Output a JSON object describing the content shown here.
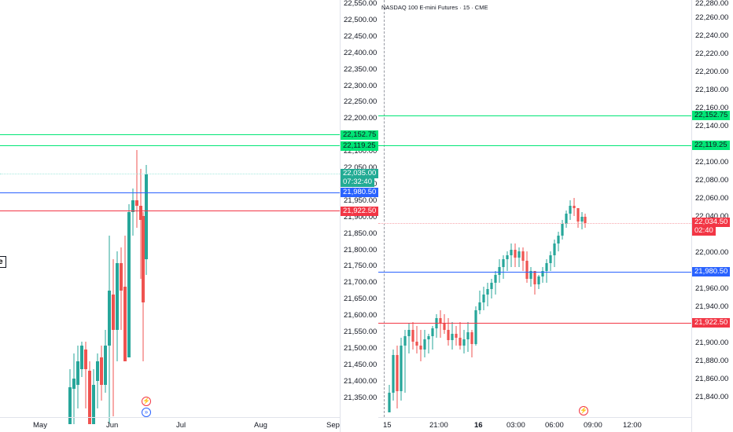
{
  "left_chart": {
    "time_axis": [
      "May",
      "Jun",
      "Jul",
      "Aug",
      "Sep"
    ],
    "price_ticks": [
      "22,550.00",
      "22,500.00",
      "22,450.00",
      "22,400.00",
      "22,350.00",
      "22,300.00",
      "22,250.00",
      "22,200.00",
      "22,150.00",
      "22,100.00",
      "22,050.00",
      "22,000.00",
      "21,950.00",
      "21,900.00",
      "21,850.00",
      "21,800.00",
      "21,750.00",
      "21,700.00",
      "21,650.00",
      "21,600.00",
      "21,550.00",
      "21,500.00",
      "21,450.00",
      "21,400.00",
      "21,350.00"
    ],
    "legend_fragment": "e",
    "tags": {
      "level_1": "22,152.75",
      "level_2": "22,119.25",
      "price": "22,035.00",
      "countdown": "07:32:40",
      "blue_level": "21,980.50",
      "red_level": "21,922.50"
    }
  },
  "right_chart": {
    "title": "NASDAQ 100 E-mini Futures · 15 · CME",
    "time_axis": [
      "15",
      "21:00",
      "16",
      "03:00",
      "06:00",
      "09:00",
      "12:00"
    ],
    "price_ticks": [
      "22,280.00",
      "22,260.00",
      "22,240.00",
      "22,220.00",
      "22,200.00",
      "22,180.00",
      "22,160.00",
      "22,140.00",
      "22,100.00",
      "22,080.00",
      "22,060.00",
      "22,040.00",
      "22,000.00",
      "21,960.00",
      "21,940.00",
      "21,900.00",
      "21,880.00",
      "21,860.00",
      "21,840.00"
    ],
    "tags": {
      "level_1": "22,152.75",
      "level_2": "22,119.25",
      "price": "22,034.50",
      "countdown": "02:40",
      "blue_level": "21,980.50",
      "red_level": "21,922.50"
    }
  },
  "colors": {
    "up": "#26a69a",
    "down": "#ef5350",
    "green_line": "#00e676",
    "blue_line": "#2962ff",
    "red_line": "#f23645",
    "grid": "#e0e3eb"
  },
  "icons": [
    "lightning-event-icon",
    "forward-arrow-icon"
  ]
}
